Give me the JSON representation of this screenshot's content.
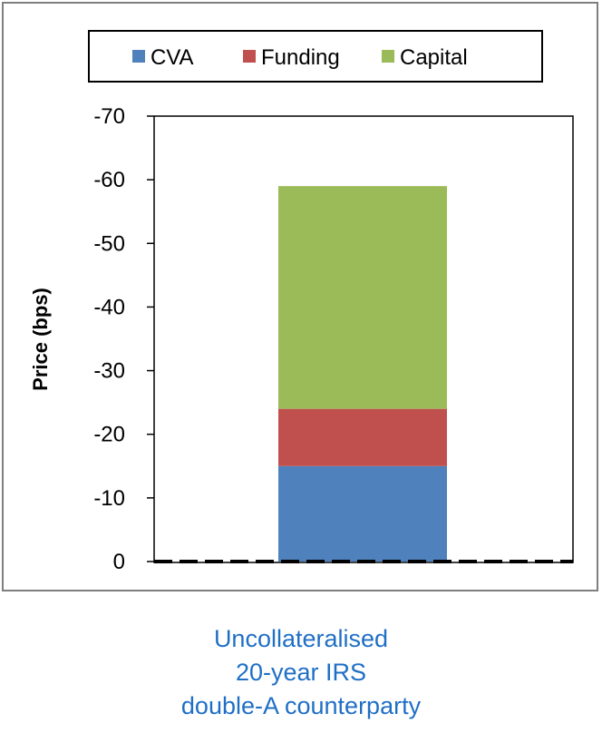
{
  "chart_data": {
    "type": "bar",
    "stacked": true,
    "categories": [
      ""
    ],
    "series": [
      {
        "name": "CVA",
        "color": "#4f81bd",
        "values": [
          -15
        ]
      },
      {
        "name": "Funding",
        "color": "#c0504d",
        "values": [
          -9
        ]
      },
      {
        "name": "Capital",
        "color": "#9bbb59",
        "values": [
          -35
        ]
      }
    ],
    "ylabel": "Price (bps)",
    "ylim": [
      0,
      -70
    ],
    "yticks": [
      0,
      -10,
      -20,
      -30,
      -40,
      -50,
      -60,
      -70
    ],
    "grid": false,
    "legend": "top",
    "zero_line": "dashed"
  },
  "caption": {
    "line1": "Uncollateralised",
    "line2": "20-year IRS",
    "line3": "double-A counterparty"
  }
}
